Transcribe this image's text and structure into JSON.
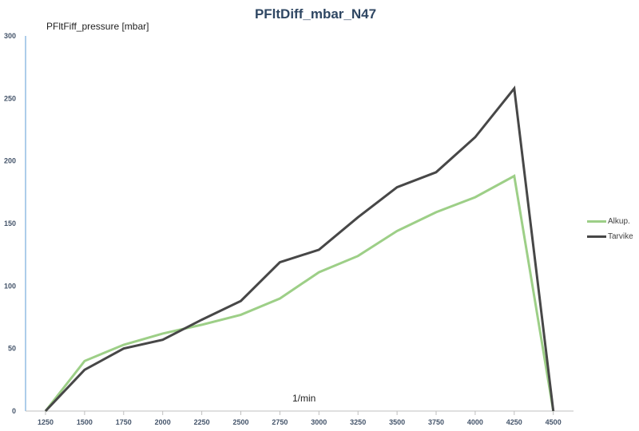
{
  "chart_data": {
    "type": "line",
    "title": "PFltDiff_mbar_N47",
    "ylabel": "PFltFiff_pressure [mbar]",
    "xlabel": "1/min",
    "categories": [
      "1250",
      "1500",
      "1750",
      "2000",
      "2250",
      "2500",
      "2750",
      "3000",
      "3250",
      "3500",
      "3750",
      "4000",
      "4250",
      "4500"
    ],
    "ylim": [
      0,
      300
    ],
    "yticks": [
      "0",
      "50",
      "100",
      "150",
      "200",
      "250",
      "300"
    ],
    "grid": false,
    "legend_position": "right",
    "series": [
      {
        "name": "Alkup.",
        "color": "#9dcf87",
        "values": [
          0,
          40,
          53,
          62,
          69,
          77,
          90,
          111,
          124,
          144,
          159,
          171,
          188,
          0
        ]
      },
      {
        "name": "Tarvike",
        "color": "#474747",
        "values": [
          0,
          33,
          50,
          57,
          73,
          88,
          119,
          129,
          155,
          179,
          191,
          219,
          258,
          0
        ]
      }
    ]
  }
}
